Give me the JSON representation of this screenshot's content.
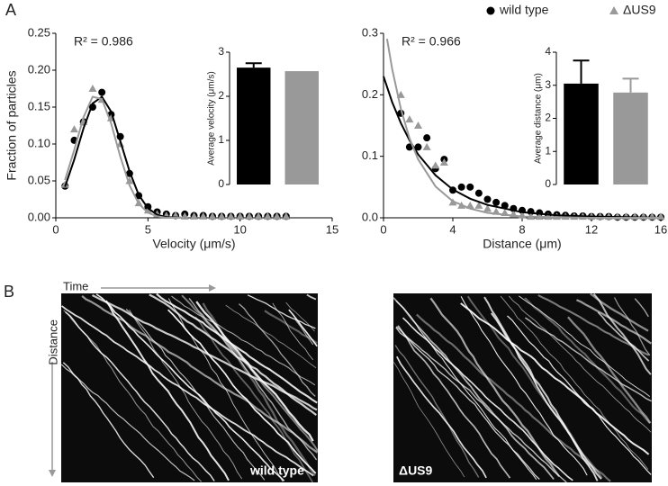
{
  "panel_labels": [
    "A",
    "B"
  ],
  "chart_data": [
    {
      "type": "scatter",
      "xlabel": "Velocity (μm/s)",
      "ylabel": "Fraction of particles",
      "annotation": "R² = 0.986",
      "xlim": [
        0,
        15
      ],
      "xticks": [
        0,
        5,
        10,
        15
      ],
      "ylim": [
        0,
        0.25
      ],
      "yticks": [
        {
          "value": 0,
          "label": "0.00"
        },
        {
          "value": 0.05,
          "label": "0.05"
        },
        {
          "value": 0.1,
          "label": "0.10"
        },
        {
          "value": 0.15,
          "label": "0.15"
        },
        {
          "value": 0.2,
          "label": "0.20"
        },
        {
          "value": 0.25,
          "label": "0.25"
        }
      ],
      "x": [
        0.5,
        1,
        1.5,
        2,
        2.5,
        3,
        3.5,
        4,
        4.5,
        5,
        5.5,
        6,
        6.5,
        7,
        7.5,
        8,
        8.5,
        9,
        9.5,
        10,
        10.5,
        11,
        11.5,
        12,
        12.5
      ],
      "series": [
        {
          "color": "#000000",
          "marker": "circle",
          "values": [
            0.043,
            0.105,
            0.13,
            0.15,
            0.17,
            0.14,
            0.11,
            0.06,
            0.03,
            0.015,
            0.008,
            0.005,
            0.003,
            0.005,
            0.003,
            0.003,
            0.002,
            0.002,
            0.002,
            0.002,
            0.002,
            0.002,
            0.002,
            0.002,
            0.002
          ]
        },
        {
          "color": "#999999",
          "marker": "triangle",
          "values": [
            0.045,
            0.12,
            0.13,
            0.175,
            0.16,
            0.135,
            0.1,
            0.05,
            0.02,
            0.01,
            0.005,
            0.003,
            0.003,
            0.002,
            0.002,
            0.002,
            0.002,
            0.002,
            0.002,
            0.002,
            0.002,
            0.002,
            0.002,
            0.002,
            0.002
          ]
        }
      ],
      "fits": [
        {
          "color": "#000000",
          "x": [
            0.5,
            1,
            1.5,
            2,
            2.5,
            3,
            3.5,
            4,
            4.5,
            5,
            5.5,
            6,
            7
          ],
          "values": [
            0.042,
            0.079,
            0.121,
            0.155,
            0.164,
            0.144,
            0.104,
            0.063,
            0.031,
            0.013,
            0.004,
            0.001,
            0
          ]
        },
        {
          "color": "#999999",
          "x": [
            0.5,
            1,
            1.5,
            2,
            2.5,
            3,
            3.5,
            4,
            4.5,
            5,
            5.5,
            6,
            7
          ],
          "values": [
            0.051,
            0.092,
            0.136,
            0.164,
            0.161,
            0.128,
            0.083,
            0.044,
            0.019,
            0.007,
            0.002,
            0,
            0
          ]
        }
      ]
    },
    {
      "type": "bar",
      "ylabel": "Average velocity (μm/s)",
      "ylim": [
        0,
        3
      ],
      "yticks": [
        0,
        1,
        2,
        3
      ],
      "categories": [
        null,
        null
      ],
      "values": [
        2.65,
        2.57
      ],
      "errors": [
        0.1,
        null
      ],
      "colors": [
        "#000000",
        "#999999"
      ]
    },
    {
      "type": "scatter",
      "xlabel": "Distance (μm)",
      "annotation": "R² = 0.966",
      "legend": "top-right",
      "xlim": [
        0,
        16
      ],
      "xticks": [
        0,
        4,
        8,
        12,
        16
      ],
      "ylim": [
        0,
        0.3
      ],
      "yticks": [
        {
          "value": 0,
          "label": "0.0"
        },
        0.1,
        0.2,
        0.3
      ],
      "x": [
        1,
        1.5,
        2,
        2.5,
        3,
        3.5,
        4,
        4.5,
        5,
        5.5,
        6,
        6.5,
        7,
        7.5,
        8,
        8.5,
        9,
        9.5,
        10,
        10.5,
        11,
        11.5,
        12,
        12.5,
        13,
        13.5,
        14,
        14.5,
        15,
        15.5,
        16
      ],
      "series": [
        {
          "name": "wild type",
          "color": "#000000",
          "marker": "circle",
          "values": [
            0.17,
            0.115,
            0.115,
            0.13,
            0.08,
            0.095,
            0.045,
            0.05,
            0.05,
            0.04,
            0.03,
            0.025,
            0.02,
            0.015,
            0.012,
            0.01,
            0.008,
            0.006,
            0.005,
            0.004,
            0.003,
            0.003,
            0.002,
            0.002,
            0.002,
            0.001,
            0.001,
            0.001,
            0.001,
            0.001,
            0.001
          ]
        },
        {
          "name": "ΔUS9",
          "color": "#999999",
          "marker": "triangle",
          "values": [
            0.2,
            0.16,
            0.15,
            0.115,
            0.085,
            0.09,
            0.025,
            0.02,
            0.02,
            0.02,
            0.015,
            0.01,
            0.008,
            0.006,
            0.004,
            0.002,
            0.002,
            0.002,
            0.002,
            0.002,
            0.002,
            0.002,
            0.002,
            0.002,
            0.002,
            0.002,
            0.002,
            0.002,
            0.002,
            0.002,
            0.002
          ]
        }
      ],
      "fits": [
        {
          "color": "#000000",
          "x": [
            0,
            0.5,
            1,
            1.5,
            2,
            3,
            4,
            5,
            6,
            8,
            10,
            12,
            16
          ],
          "values": [
            0.23,
            0.188,
            0.154,
            0.126,
            0.103,
            0.069,
            0.046,
            0.031,
            0.021,
            0.009,
            0.004,
            0.002,
            0
          ]
        },
        {
          "color": "#999999",
          "x": [
            0.2,
            0.5,
            1,
            1.5,
            2,
            3,
            4,
            5,
            6,
            8,
            10,
            12,
            16
          ],
          "values": [
            0.291,
            0.242,
            0.177,
            0.129,
            0.095,
            0.051,
            0.027,
            0.015,
            0.008,
            0.002,
            0.001,
            0,
            0
          ]
        }
      ]
    },
    {
      "type": "bar",
      "ylabel": "Average distance (μm)",
      "ylim": [
        0,
        4
      ],
      "yticks": [
        0,
        1,
        2,
        3,
        4
      ],
      "categories": [
        null,
        null
      ],
      "values": [
        3.05,
        2.78
      ],
      "errors": [
        0.7,
        0.42
      ],
      "colors": [
        "#000000",
        "#999999"
      ]
    }
  ],
  "kymographs": {
    "time_label": "Time",
    "distance_label": "Distance",
    "captions": [
      "wild type",
      "ΔUS9"
    ]
  }
}
